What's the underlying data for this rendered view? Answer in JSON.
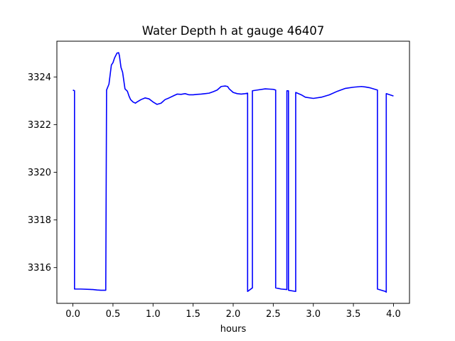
{
  "chart_data": {
    "type": "line",
    "title": "Water Depth h at gauge 46407",
    "xlabel": "hours",
    "ylabel": "",
    "xlim": [
      -0.2,
      4.2
    ],
    "ylim": [
      3314.5,
      3325.5
    ],
    "xticks": [
      0.0,
      0.5,
      1.0,
      1.5,
      2.0,
      2.5,
      3.0,
      3.5,
      4.0
    ],
    "xtick_labels": [
      "0.0",
      "0.5",
      "1.0",
      "1.5",
      "2.0",
      "2.5",
      "3.0",
      "3.5",
      "4.0"
    ],
    "yticks": [
      3316,
      3318,
      3320,
      3322,
      3324
    ],
    "ytick_labels": [
      "3316",
      "3318",
      "3320",
      "3322",
      "3324"
    ],
    "grid": false,
    "series": [
      {
        "color": "#0000ff",
        "x": [
          0.0,
          0.02,
          0.02,
          0.1,
          0.25,
          0.3,
          0.35,
          0.41,
          0.42,
          0.42,
          0.45,
          0.48,
          0.5,
          0.52,
          0.55,
          0.57,
          0.58,
          0.6,
          0.62,
          0.65,
          0.68,
          0.7,
          0.72,
          0.75,
          0.78,
          0.8,
          0.85,
          0.9,
          0.95,
          1.0,
          1.05,
          1.1,
          1.15,
          1.2,
          1.25,
          1.3,
          1.35,
          1.4,
          1.45,
          1.5,
          1.55,
          1.6,
          1.65,
          1.7,
          1.75,
          1.8,
          1.85,
          1.9,
          1.93,
          1.95,
          2.0,
          2.05,
          2.1,
          2.15,
          2.18,
          2.18,
          2.24,
          2.24,
          2.3,
          2.4,
          2.5,
          2.53,
          2.53,
          2.6,
          2.67,
          2.67,
          2.69,
          2.69,
          2.78,
          2.78,
          2.85,
          2.9,
          3.0,
          3.1,
          3.2,
          3.3,
          3.4,
          3.5,
          3.6,
          3.65,
          3.7,
          3.8,
          3.8,
          3.9,
          3.91,
          3.91,
          4.0
        ],
        "y": [
          3323.45,
          3323.42,
          3315.1,
          3315.1,
          3315.08,
          3315.06,
          3315.05,
          3315.05,
          3323.4,
          3323.45,
          3323.7,
          3324.5,
          3324.6,
          3324.8,
          3325.0,
          3325.02,
          3324.9,
          3324.4,
          3324.2,
          3323.5,
          3323.4,
          3323.2,
          3323.05,
          3322.95,
          3322.9,
          3322.95,
          3323.05,
          3323.12,
          3323.08,
          3322.95,
          3322.85,
          3322.9,
          3323.05,
          3323.12,
          3323.2,
          3323.28,
          3323.27,
          3323.3,
          3323.25,
          3323.25,
          3323.27,
          3323.28,
          3323.3,
          3323.32,
          3323.38,
          3323.45,
          3323.6,
          3323.62,
          3323.6,
          3323.5,
          3323.35,
          3323.3,
          3323.28,
          3323.3,
          3323.32,
          3315.0,
          3315.15,
          3323.42,
          3323.45,
          3323.5,
          3323.48,
          3323.45,
          3315.15,
          3315.1,
          3315.08,
          3323.42,
          3323.42,
          3315.05,
          3315.0,
          3323.35,
          3323.25,
          3323.15,
          3323.1,
          3323.15,
          3323.25,
          3323.4,
          3323.52,
          3323.57,
          3323.6,
          3323.58,
          3323.55,
          3323.45,
          3315.1,
          3315.0,
          3314.97,
          3323.3,
          3323.2
        ]
      }
    ]
  }
}
